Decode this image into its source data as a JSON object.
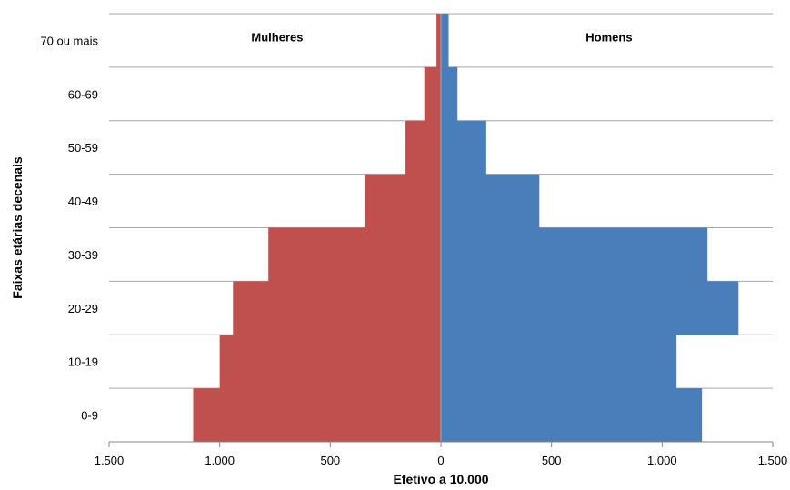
{
  "chart_data": {
    "type": "bar",
    "orientation": "horizontal",
    "layout": "population-pyramid",
    "categories": [
      "0-9",
      "10-19",
      "20-29",
      "30-39",
      "40-49",
      "50-59",
      "60-69",
      "70 ou mais"
    ],
    "series": [
      {
        "name": "Mulheres",
        "side": "left",
        "color": "#C0504D",
        "values": [
          1120,
          1000,
          940,
          780,
          345,
          160,
          75,
          20
        ]
      },
      {
        "name": "Homens",
        "side": "right",
        "color": "#4A7EBB",
        "values": [
          1180,
          1065,
          1345,
          1205,
          445,
          205,
          75,
          35
        ]
      }
    ],
    "xlabel": "Efetivo a 10.000",
    "ylabel": "Faixas etárias decenais",
    "xlim": [
      -1500,
      1500
    ],
    "x_ticks": [
      -1500,
      -1000,
      -500,
      0,
      500,
      1000,
      1500
    ],
    "x_tick_labels": [
      "1.500",
      "1.000",
      "500",
      "0",
      "500",
      "1.000",
      "1.500"
    ],
    "grid": {
      "horizontal": true,
      "vertical": false
    },
    "legend": "inline-labels-top"
  }
}
